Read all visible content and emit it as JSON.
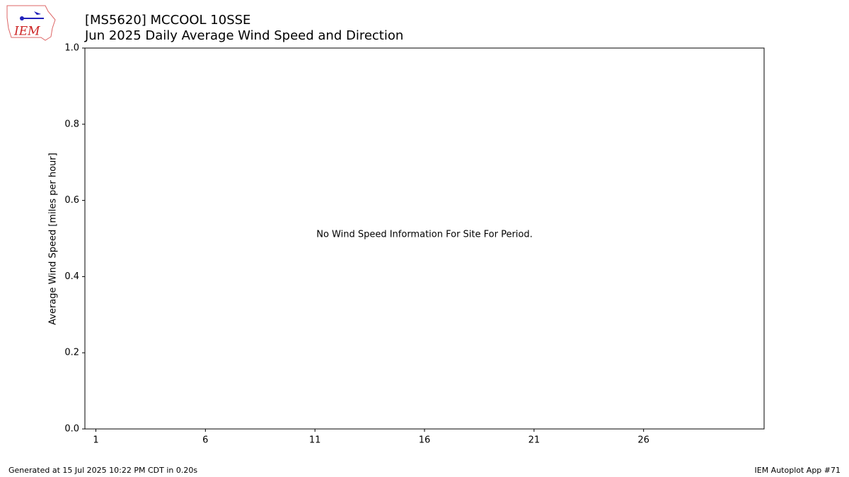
{
  "chart_data": {
    "type": "bar",
    "title": "[MS5620] MCCOOL 10SSE",
    "subtitle": "Jun 2025 Daily Average Wind Speed and Direction",
    "ylabel": "Average Wind Speed [miles per hour]",
    "annotation": "No Wind Speed Information For Site For Period.",
    "xlim": [
      0.5,
      31.5
    ],
    "xticks": [
      1,
      6,
      11,
      16,
      21,
      26
    ],
    "ylim": [
      0,
      1
    ],
    "yticks": [
      {
        "value": 0,
        "label": "0.0"
      },
      0.2,
      0.4,
      0.6,
      0.8,
      {
        "value": 1,
        "label": "1.0"
      }
    ],
    "grid": false
  },
  "logo": "IEM",
  "footer": {
    "left": "Generated at 15 Jul 2025 10:22 PM CDT in 0.20s",
    "right": "IEM Autoplot App #71"
  }
}
